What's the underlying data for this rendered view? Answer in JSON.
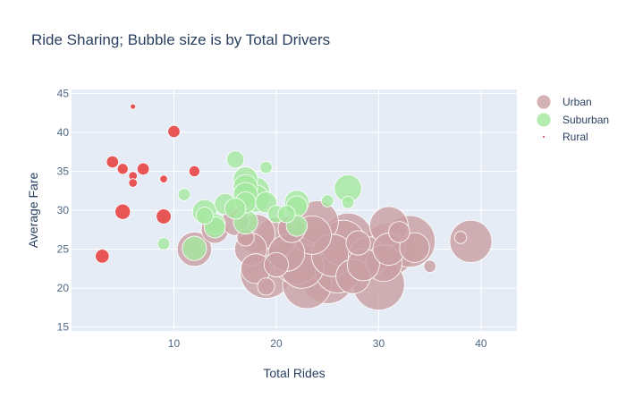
{
  "chart_data": {
    "type": "scatter",
    "title": "Ride Sharing; Bubble size is by Total Drivers",
    "xlabel": "Total Rides",
    "ylabel": "Average Fare",
    "xlim": [
      0,
      43.5
    ],
    "ylim": [
      14.5,
      45.5
    ],
    "x_ticks": [
      10,
      20,
      30,
      40
    ],
    "y_ticks": [
      15,
      20,
      25,
      30,
      35,
      40,
      45
    ],
    "grid": true,
    "legend_position": "top-right",
    "series": [
      {
        "name": "Urban",
        "color": "#c9a0a4",
        "points": [
          {
            "x": 19,
            "y": 22,
            "size": 18
          },
          {
            "x": 23,
            "y": 20.5,
            "size": 16
          },
          {
            "x": 25,
            "y": 21.5,
            "size": 20
          },
          {
            "x": 30,
            "y": 20.5,
            "size": 18
          },
          {
            "x": 26,
            "y": 22.3,
            "size": 14
          },
          {
            "x": 22,
            "y": 23.5,
            "size": 15
          },
          {
            "x": 24,
            "y": 24.5,
            "size": 17
          },
          {
            "x": 27,
            "y": 26.5,
            "size": 16
          },
          {
            "x": 31,
            "y": 25,
            "size": 19
          },
          {
            "x": 33,
            "y": 26,
            "size": 18
          },
          {
            "x": 39,
            "y": 26,
            "size": 12
          },
          {
            "x": 20,
            "y": 26.5,
            "size": 11
          },
          {
            "x": 18,
            "y": 27,
            "size": 10
          },
          {
            "x": 24,
            "y": 28.5,
            "size": 12
          },
          {
            "x": 31,
            "y": 28,
            "size": 10
          },
          {
            "x": 12,
            "y": 25,
            "size": 8
          },
          {
            "x": 14,
            "y": 27.5,
            "size": 5
          },
          {
            "x": 16,
            "y": 28.5,
            "size": 5
          },
          {
            "x": 18,
            "y": 22.5,
            "size": 6
          },
          {
            "x": 28.5,
            "y": 23,
            "size": 7
          },
          {
            "x": 21,
            "y": 24.5,
            "size": 9
          },
          {
            "x": 29,
            "y": 24,
            "size": 11
          },
          {
            "x": 26.5,
            "y": 25.8,
            "size": 14
          },
          {
            "x": 23.5,
            "y": 26.8,
            "size": 10
          },
          {
            "x": 17.5,
            "y": 25,
            "size": 7
          },
          {
            "x": 32,
            "y": 27.2,
            "size": 3
          },
          {
            "x": 35,
            "y": 22.8,
            "size": 1
          },
          {
            "x": 19,
            "y": 20.2,
            "size": 2
          },
          {
            "x": 20,
            "y": 23,
            "size": 4
          },
          {
            "x": 27.5,
            "y": 21.5,
            "size": 8
          },
          {
            "x": 22.5,
            "y": 22.8,
            "size": 13
          },
          {
            "x": 30.5,
            "y": 23.2,
            "size": 9
          },
          {
            "x": 25.5,
            "y": 24.2,
            "size": 12
          },
          {
            "x": 17,
            "y": 26.5,
            "size": 2
          },
          {
            "x": 21.5,
            "y": 27.6,
            "size": 5
          },
          {
            "x": 33.5,
            "y": 25.2,
            "size": 6
          },
          {
            "x": 28,
            "y": 25.8,
            "size": 4
          },
          {
            "x": 31,
            "y": 25,
            "size": 7
          },
          {
            "x": 38,
            "y": 26.5,
            "size": 1
          }
        ]
      },
      {
        "name": "Suburban",
        "color": "#a5e8a0",
        "points": [
          {
            "x": 16,
            "y": 36.5,
            "size": 2
          },
          {
            "x": 19,
            "y": 35.5,
            "size": 1
          },
          {
            "x": 17,
            "y": 34,
            "size": 4
          },
          {
            "x": 18,
            "y": 32.5,
            "size": 5
          },
          {
            "x": 17,
            "y": 33,
            "size": 4
          },
          {
            "x": 17,
            "y": 32,
            "size": 4
          },
          {
            "x": 18,
            "y": 31.5,
            "size": 5
          },
          {
            "x": 11,
            "y": 32,
            "size": 1
          },
          {
            "x": 15,
            "y": 30.8,
            "size": 3
          },
          {
            "x": 17,
            "y": 31,
            "size": 3
          },
          {
            "x": 19,
            "y": 31,
            "size": 3
          },
          {
            "x": 16,
            "y": 30.2,
            "size": 3
          },
          {
            "x": 22,
            "y": 31,
            "size": 4
          },
          {
            "x": 22,
            "y": 30.5,
            "size": 3
          },
          {
            "x": 27,
            "y": 32.8,
            "size": 5
          },
          {
            "x": 25,
            "y": 31.2,
            "size": 1
          },
          {
            "x": 27,
            "y": 31,
            "size": 1
          },
          {
            "x": 13,
            "y": 29.8,
            "size": 4
          },
          {
            "x": 13,
            "y": 29.3,
            "size": 2
          },
          {
            "x": 20,
            "y": 29.5,
            "size": 2
          },
          {
            "x": 21,
            "y": 29.5,
            "size": 2
          },
          {
            "x": 14,
            "y": 28.2,
            "size": 3
          },
          {
            "x": 17,
            "y": 28.5,
            "size": 4
          },
          {
            "x": 14,
            "y": 27.8,
            "size": 3
          },
          {
            "x": 22,
            "y": 28,
            "size": 3
          },
          {
            "x": 9,
            "y": 25.7,
            "size": 1
          },
          {
            "x": 12,
            "y": 25.1,
            "size": 4
          }
        ]
      },
      {
        "name": "Rural",
        "color": "#e85555",
        "points": [
          {
            "x": 6,
            "y": 43.3,
            "size": 0.2
          },
          {
            "x": 10,
            "y": 40.1,
            "size": 1
          },
          {
            "x": 4,
            "y": 36.2,
            "size": 1
          },
          {
            "x": 5,
            "y": 35.3,
            "size": 0.8
          },
          {
            "x": 7,
            "y": 35.3,
            "size": 1
          },
          {
            "x": 12,
            "y": 35,
            "size": 0.8
          },
          {
            "x": 6,
            "y": 34.4,
            "size": 0.5
          },
          {
            "x": 9,
            "y": 34,
            "size": 0.4
          },
          {
            "x": 6,
            "y": 33.5,
            "size": 0.5
          },
          {
            "x": 5,
            "y": 29.8,
            "size": 1.6
          },
          {
            "x": 9,
            "y": 29.2,
            "size": 1.5
          },
          {
            "x": 3,
            "y": 24.1,
            "size": 1.3
          }
        ]
      }
    ]
  }
}
